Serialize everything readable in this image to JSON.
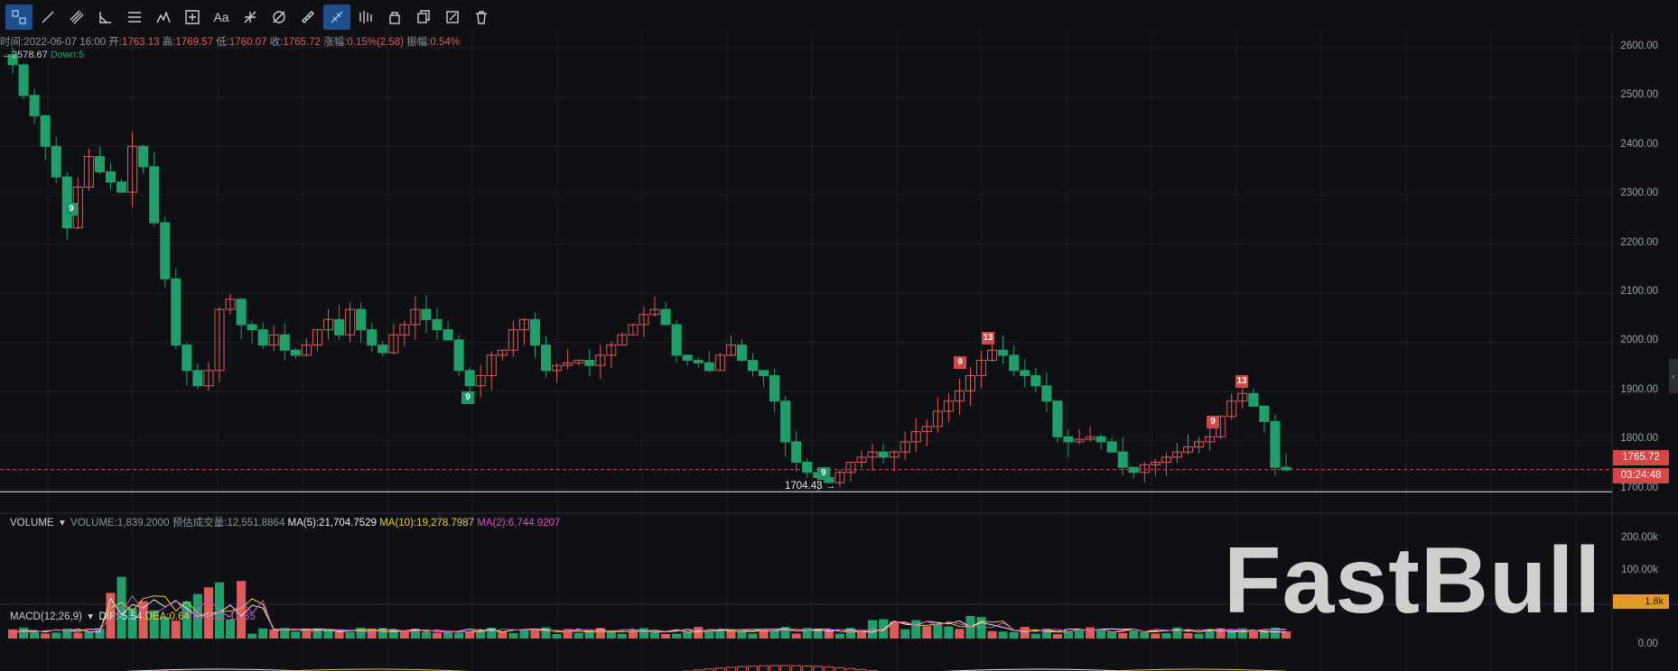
{
  "toolbar": {
    "tools": [
      "crosshair-icon",
      "trend-line-icon",
      "parallel-channel-icon",
      "angle-icon",
      "horizontal-lines-icon",
      "pattern-icon",
      "measure-icon",
      "text-icon",
      "fib-icon",
      "gann-icon",
      "ruler-icon",
      "magnet-icon",
      "indicator-icon",
      "lock-icon",
      "copy-icon",
      "edit-icon",
      "delete-icon"
    ],
    "text_tool_label": "Aa"
  },
  "info": {
    "time_label": "时间:",
    "time_value": "2022-06-07 16:00",
    "open_label": "开:",
    "open_value": "1763.13",
    "high_label": "高:",
    "high_value": "1769.57",
    "low_label": "低:",
    "low_value": "1760.07",
    "close_label": "收:",
    "close_value": "1765.72",
    "change_label": "涨幅:",
    "change_value": "0.15%(2.58)",
    "amp_label": "振幅:",
    "amp_value": "0.54%"
  },
  "subinfo": {
    "left": "←2578.67",
    "down": "Down:5"
  },
  "price_axis": [
    "2600.00",
    "2500.00",
    "2400.00",
    "2300.00",
    "2200.00",
    "2100.00",
    "2000.00",
    "1900.00",
    "1800.00",
    "1700.00"
  ],
  "current_price": "1765.72",
  "countdown": "03:24:48",
  "low_marker": "1704.43 →",
  "td_markers": [
    {
      "text": "9",
      "color": "g"
    },
    {
      "text": "9",
      "color": "g"
    },
    {
      "text": "9",
      "color": "g"
    },
    {
      "text": "9",
      "color": "r"
    },
    {
      "text": "13",
      "color": "r"
    },
    {
      "text": "9",
      "color": "r"
    },
    {
      "text": "13",
      "color": "r"
    }
  ],
  "volume": {
    "title": "VOLUME",
    "volume_label": "VOLUME:1,839.2000",
    "est_label": "预估成交量:12,551.8864",
    "ma5": "MA(5):21,704.7529",
    "ma10": "MA(10):19,278.7987",
    "ma2": "MA(2):6,744.9207",
    "axis": [
      "200.00k",
      "100.00k"
    ],
    "current": "1.8k"
  },
  "macd": {
    "title": "MACD(12,26,9)",
    "dif": "DIF:-5.54",
    "dea": "DEA:0.64",
    "macd": "MACD:-12.35",
    "axis": [
      "0.00"
    ]
  },
  "watermark": "FastBull",
  "colors": {
    "up": "#e05a5a",
    "down": "#1ea06a",
    "background": "#0f1014",
    "ma5": "#e6e8ec",
    "ma10": "#e6c93b",
    "ma2": "#d04fc0"
  },
  "chart_data": {
    "type": "candlestick",
    "ylim": [
      1680,
      2620
    ],
    "closes": [
      2560,
      2500,
      2460,
      2400,
      2340,
      2240,
      2320,
      2380,
      2350,
      2330,
      2310,
      2400,
      2360,
      2250,
      2140,
      2010,
      1960,
      1930,
      1960,
      2080,
      2100,
      2050,
      2040,
      2010,
      2030,
      2000,
      1990,
      2010,
      2040,
      2060,
      2030,
      2080,
      2040,
      2010,
      1995,
      2030,
      2050,
      2080,
      2060,
      2040,
      2020,
      1960,
      1930,
      1950,
      1990,
      2000,
      2040,
      2060,
      2010,
      1960,
      1970,
      1975,
      1980,
      1970,
      1990,
      2010,
      2030,
      2050,
      2070,
      2080,
      2050,
      1990,
      1980,
      1975,
      1960,
      1990,
      2010,
      1980,
      1960,
      1950,
      1900,
      1820,
      1780,
      1760,
      1750,
      1740,
      1760,
      1780,
      1790,
      1800,
      1790,
      1800,
      1820,
      1840,
      1850,
      1880,
      1900,
      1920,
      1950,
      1980,
      2000,
      1990,
      1960,
      1950,
      1930,
      1900,
      1830,
      1820,
      1825,
      1830,
      1820,
      1800,
      1770,
      1760,
      1775,
      1780,
      1790,
      1800,
      1810,
      1820,
      1830,
      1870,
      1900,
      1915,
      1890,
      1860,
      1770,
      1765
    ]
  }
}
